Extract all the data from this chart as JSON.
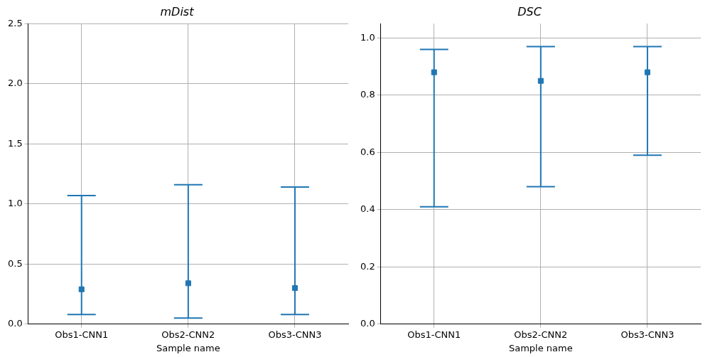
{
  "chart_data": [
    {
      "type": "scatter",
      "title": "mDist",
      "xlabel": "Sample name",
      "categories": [
        "Obs1-CNN1",
        "Obs2-CNN2",
        "Obs3-CNN3"
      ],
      "color": "#1f77b4",
      "values": [
        0.29,
        0.34,
        0.3
      ],
      "errors": [
        [
          0.08,
          1.07
        ],
        [
          0.05,
          1.16
        ],
        [
          0.08,
          1.14
        ]
      ],
      "ylim": [
        0,
        2.5
      ],
      "yticks": [
        {
          "value": 0,
          "label": "0.0"
        },
        0.5,
        {
          "value": 1,
          "label": "1.0"
        },
        1.5,
        {
          "value": 2,
          "label": "2.0"
        },
        2.5
      ],
      "grid": true
    },
    {
      "type": "scatter",
      "title": "DSC",
      "xlabel": "Sample name",
      "categories": [
        "Obs1-CNN1",
        "Obs2-CNN2",
        "Obs3-CNN3"
      ],
      "color": "#1f77b4",
      "values": [
        0.88,
        0.85,
        0.88
      ],
      "errors": [
        [
          0.41,
          0.96
        ],
        [
          0.48,
          0.97
        ],
        [
          0.59,
          0.97
        ]
      ],
      "ylim": [
        0,
        1.05
      ],
      "yticks": [
        {
          "value": 0,
          "label": "0.0"
        },
        0.2,
        0.4,
        0.6,
        0.8,
        {
          "value": 1,
          "label": "1.0"
        }
      ],
      "grid": true
    }
  ]
}
